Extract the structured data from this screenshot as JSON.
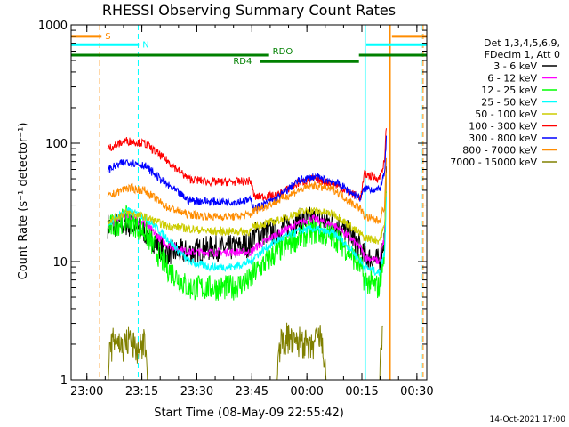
{
  "chart_data": {
    "type": "line",
    "title": "RHESSI Observing Summary Count Rates",
    "xlabel": "Start Time (08-May-09 22:55:42)",
    "ylabel": "Count Rate (s⁻¹ detector⁻¹)",
    "footer": "14-Oct-2021 17:00",
    "x_unit": "minutes after 22:55:42",
    "xlim": [
      0,
      97
    ],
    "ylim": [
      1,
      1000
    ],
    "yscale": "log",
    "grid": false,
    "x_ticks": [
      {
        "label": "23:00",
        "t": 4.3
      },
      {
        "label": "23:15",
        "t": 19.3
      },
      {
        "label": "23:30",
        "t": 34.3
      },
      {
        "label": "23:45",
        "t": 49.3
      },
      {
        "label": "00:00",
        "t": 64.3
      },
      {
        "label": "00:15",
        "t": 79.3
      },
      {
        "label": "00:30",
        "t": 94.3
      }
    ],
    "y_ticks": [
      {
        "label": "1",
        "v": 1
      },
      {
        "label": "10",
        "v": 10
      },
      {
        "label": "100",
        "v": 100
      },
      {
        "label": "1000",
        "v": 1000
      }
    ],
    "legend": {
      "placement": "right",
      "header": [
        "Det 1,3,4,5,6,9,",
        "FDecim 1, Att 0"
      ]
    },
    "series": [
      {
        "name": "3 - 6 keV",
        "color": "#000000",
        "points": [
          [
            10,
            20
          ],
          [
            15,
            21
          ],
          [
            20,
            18
          ],
          [
            26,
            12
          ],
          [
            32,
            12
          ],
          [
            38,
            13
          ],
          [
            44,
            13
          ],
          [
            49,
            14
          ],
          [
            50,
            17
          ],
          [
            56,
            18
          ],
          [
            62,
            22
          ],
          [
            66,
            23
          ],
          [
            72,
            21
          ],
          [
            76,
            17
          ],
          [
            79,
            13
          ],
          [
            80,
            11
          ],
          [
            84,
            10
          ],
          [
            85.5,
            16
          ],
          [
            86,
            60
          ]
        ]
      },
      {
        "name": "6 - 12 keV",
        "color": "#ff00ff",
        "points": [
          [
            10,
            20
          ],
          [
            15,
            25
          ],
          [
            20,
            21
          ],
          [
            26,
            14
          ],
          [
            32,
            12
          ],
          [
            38,
            12
          ],
          [
            44,
            12
          ],
          [
            49,
            12
          ],
          [
            50,
            13
          ],
          [
            56,
            17
          ],
          [
            62,
            21
          ],
          [
            66,
            23
          ],
          [
            72,
            20
          ],
          [
            76,
            16
          ],
          [
            79,
            13
          ],
          [
            80,
            11
          ],
          [
            84,
            10
          ],
          [
            85.5,
            16
          ],
          [
            86,
            60
          ]
        ]
      },
      {
        "name": "12 - 25 keV",
        "color": "#00ff00",
        "points": [
          [
            10,
            19
          ],
          [
            15,
            23
          ],
          [
            20,
            18
          ],
          [
            26,
            9
          ],
          [
            32,
            6
          ],
          [
            38,
            6
          ],
          [
            44,
            6
          ],
          [
            49,
            7
          ],
          [
            50,
            8
          ],
          [
            56,
            12
          ],
          [
            62,
            16
          ],
          [
            66,
            18
          ],
          [
            72,
            16
          ],
          [
            76,
            12
          ],
          [
            79,
            9
          ],
          [
            80,
            7
          ],
          [
            84,
            6
          ],
          [
            85.5,
            12
          ],
          [
            86,
            50
          ]
        ]
      },
      {
        "name": "25 - 50 keV",
        "color": "#00ffff",
        "points": [
          [
            10,
            21
          ],
          [
            15,
            27
          ],
          [
            20,
            24
          ],
          [
            26,
            16
          ],
          [
            32,
            10
          ],
          [
            38,
            9
          ],
          [
            44,
            9
          ],
          [
            49,
            10
          ],
          [
            50,
            11
          ],
          [
            56,
            15
          ],
          [
            62,
            18
          ],
          [
            66,
            19
          ],
          [
            72,
            17
          ],
          [
            76,
            13
          ],
          [
            79,
            10
          ],
          [
            80,
            9
          ],
          [
            84,
            8
          ],
          [
            85.5,
            12
          ],
          [
            86,
            40
          ]
        ]
      },
      {
        "name": "50 - 100 keV",
        "color": "#cccc00",
        "points": [
          [
            10,
            22
          ],
          [
            15,
            26
          ],
          [
            20,
            24
          ],
          [
            26,
            20
          ],
          [
            32,
            19
          ],
          [
            38,
            18
          ],
          [
            44,
            18
          ],
          [
            49,
            18
          ],
          [
            50,
            20
          ],
          [
            56,
            22
          ],
          [
            62,
            26
          ],
          [
            66,
            27
          ],
          [
            72,
            25
          ],
          [
            76,
            20
          ],
          [
            79,
            17
          ],
          [
            80,
            16
          ],
          [
            84,
            15
          ],
          [
            85.5,
            20
          ],
          [
            86,
            60
          ]
        ]
      },
      {
        "name": "100 - 300 keV",
        "color": "#ff0000",
        "points": [
          [
            10,
            90
          ],
          [
            15,
            105
          ],
          [
            20,
            100
          ],
          [
            26,
            72
          ],
          [
            32,
            50
          ],
          [
            38,
            47
          ],
          [
            44,
            47
          ],
          [
            49,
            48
          ],
          [
            50,
            35
          ],
          [
            56,
            36
          ],
          [
            62,
            46
          ],
          [
            66,
            50
          ],
          [
            72,
            45
          ],
          [
            76,
            38
          ],
          [
            79,
            35
          ],
          [
            80,
            55
          ],
          [
            84,
            50
          ],
          [
            85.5,
            70
          ],
          [
            86,
            150
          ]
        ]
      },
      {
        "name": "300 - 800 keV",
        "color": "#0000ff",
        "points": [
          [
            10,
            60
          ],
          [
            15,
            70
          ],
          [
            20,
            65
          ],
          [
            26,
            45
          ],
          [
            32,
            33
          ],
          [
            38,
            32
          ],
          [
            44,
            32
          ],
          [
            49,
            33
          ],
          [
            50,
            28
          ],
          [
            56,
            34
          ],
          [
            62,
            48
          ],
          [
            66,
            52
          ],
          [
            72,
            47
          ],
          [
            76,
            39
          ],
          [
            79,
            34
          ],
          [
            80,
            42
          ],
          [
            84,
            40
          ],
          [
            85.5,
            55
          ],
          [
            86,
            120
          ]
        ]
      },
      {
        "name": "800 - 7000 keV",
        "color": "#ff8c00",
        "points": [
          [
            10,
            35
          ],
          [
            15,
            42
          ],
          [
            20,
            40
          ],
          [
            26,
            29
          ],
          [
            32,
            25
          ],
          [
            38,
            24
          ],
          [
            44,
            24
          ],
          [
            49,
            25
          ],
          [
            50,
            27
          ],
          [
            56,
            32
          ],
          [
            62,
            40
          ],
          [
            66,
            44
          ],
          [
            72,
            40
          ],
          [
            76,
            32
          ],
          [
            79,
            28
          ],
          [
            80,
            24
          ],
          [
            84,
            22
          ],
          [
            85.5,
            30
          ],
          [
            86,
            80
          ]
        ]
      },
      {
        "name": "7000 - 15000 keV",
        "color": "#808000",
        "points": [
          [
            10,
            1
          ],
          [
            10.5,
            2.0
          ],
          [
            12,
            2.8
          ],
          [
            14,
            2.2
          ],
          [
            16,
            2.7
          ],
          [
            18,
            2.0
          ],
          [
            20,
            2.6
          ],
          [
            21,
            1.0
          ],
          [
            56,
            1.0
          ],
          [
            57,
            2.4
          ],
          [
            59,
            2.8
          ],
          [
            61,
            2.3
          ],
          [
            63,
            2.7
          ],
          [
            65,
            2.1
          ],
          [
            68,
            2.8
          ],
          [
            70,
            1.0
          ],
          [
            84,
            1.0
          ],
          [
            85,
            4.0
          ]
        ]
      }
    ],
    "annotations": [
      {
        "label": "S",
        "color": "#ff8c00",
        "t0": 0,
        "t1": 8.3,
        "v": 800,
        "kind": "bar"
      },
      {
        "label": "S",
        "color": "#ff8c00",
        "t0": 87.5,
        "t1": 97,
        "v": 800,
        "kind": "bar"
      },
      {
        "label": "N",
        "color": "#00ffff",
        "t0": 0,
        "t1": 18.5,
        "v": 680,
        "kind": "bar"
      },
      {
        "label": "N",
        "color": "#00ffff",
        "t0": 80.5,
        "t1": 97,
        "v": 680,
        "kind": "bar"
      },
      {
        "label": "RDO",
        "color": "#008000",
        "t0": 0,
        "t1": 54,
        "v": 555,
        "kind": "bar"
      },
      {
        "label": "RD4",
        "color": "#008000",
        "t0": 51.5,
        "t1": 78.5,
        "v": 490,
        "kind": "bar"
      },
      {
        "label": "RDO",
        "color": "#008000",
        "t0": 78.5,
        "t1": 97,
        "v": 555,
        "kind": "bar"
      }
    ],
    "vlines": [
      {
        "t": 7.8,
        "color": "#ff8c00",
        "style": "dashed"
      },
      {
        "t": 18.3,
        "color": "#00ffff",
        "style": "dashed"
      },
      {
        "t": 80.2,
        "color": "#00ffff",
        "style": "solid"
      },
      {
        "t": 87.0,
        "color": "#ff8c00",
        "style": "solid"
      },
      {
        "t": 95.5,
        "color": "#00ffff",
        "style": "dashed"
      },
      {
        "t": 96.0,
        "color": "#ff8c00",
        "style": "dashed"
      }
    ]
  }
}
